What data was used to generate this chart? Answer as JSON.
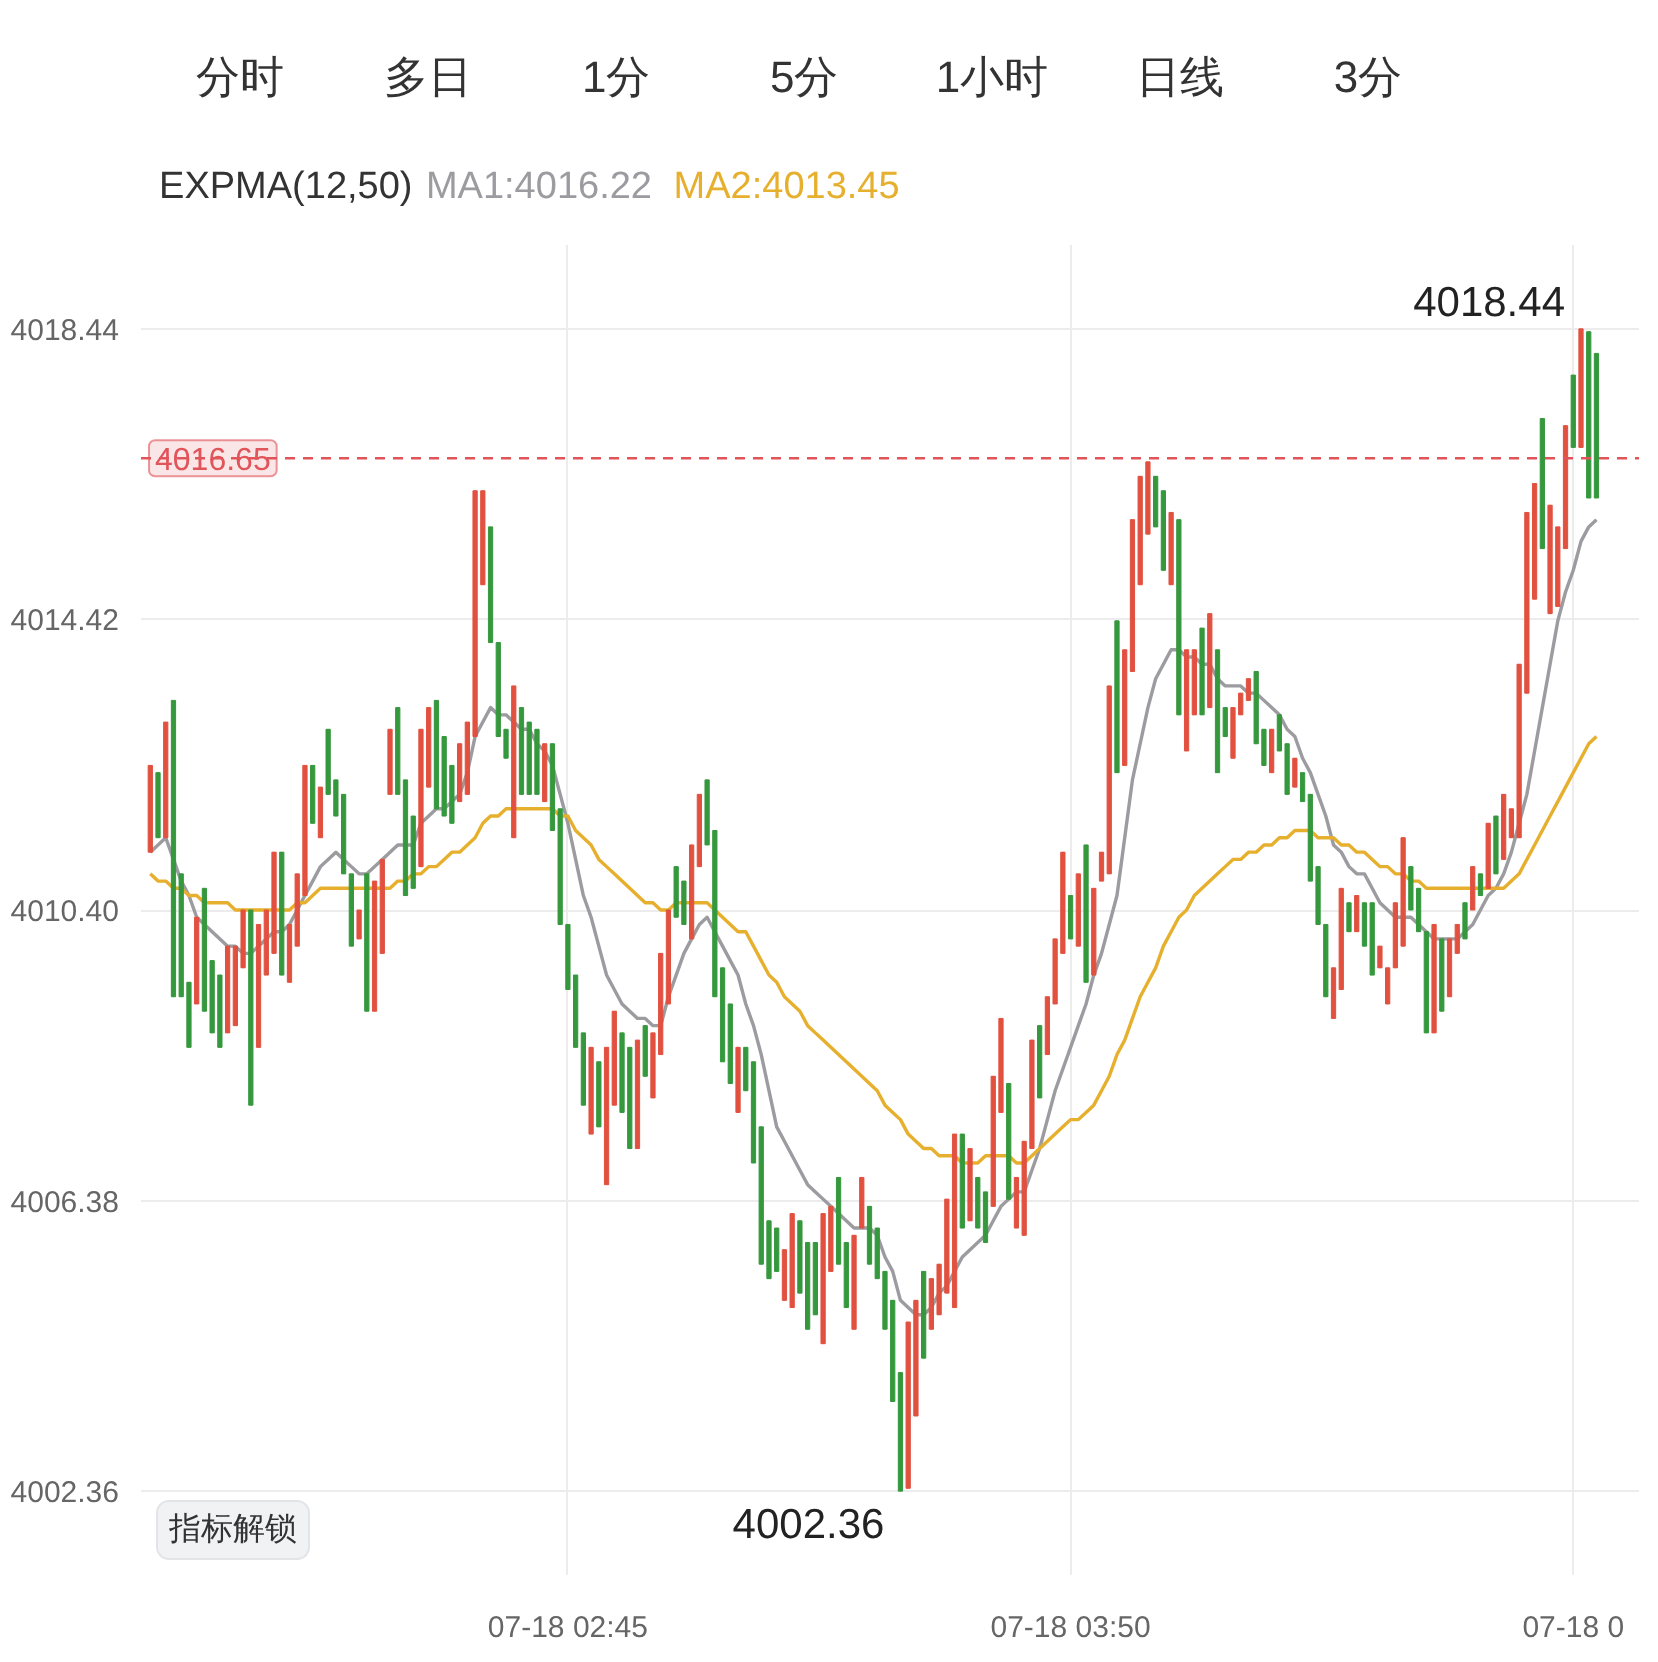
{
  "chart_data": {
    "type": "candlestick",
    "legend_title": "EXPMA(12,50)",
    "legend": "top left",
    "grid": true,
    "categories": [
      null,
      null,
      null,
      null,
      null,
      null,
      null,
      null,
      null,
      null,
      null,
      null,
      null,
      null,
      null,
      null,
      null,
      null,
      null,
      null,
      null,
      null,
      null,
      null,
      null,
      null,
      null,
      null,
      null,
      null,
      null,
      null,
      null,
      null,
      null,
      null,
      null,
      null,
      null,
      null,
      null,
      null,
      null,
      null,
      null,
      null,
      null,
      null,
      null,
      null,
      null,
      null,
      null,
      null,
      "07-18 02:45",
      null,
      null,
      null,
      null,
      null,
      null,
      null,
      null,
      null,
      null,
      null,
      null,
      null,
      null,
      null,
      null,
      null,
      null,
      null,
      null,
      null,
      null,
      null,
      null,
      null,
      null,
      null,
      null,
      null,
      null,
      null,
      null,
      null,
      null,
      null,
      null,
      null,
      null,
      null,
      null,
      null,
      null,
      null,
      null,
      null,
      null,
      null,
      null,
      null,
      null,
      null,
      null,
      null,
      null,
      null,
      null,
      null,
      null,
      null,
      null,
      null,
      null,
      null,
      null,
      "07-18 03:50",
      null,
      null,
      null,
      null,
      null,
      null,
      null,
      null,
      null,
      null,
      null,
      null,
      null,
      null,
      null,
      null,
      null,
      null,
      null,
      null,
      null,
      null,
      null,
      null,
      null,
      null,
      null,
      null,
      null,
      null,
      null,
      null,
      null,
      null,
      null,
      null,
      null,
      null,
      null,
      null,
      null,
      null,
      null,
      null,
      null,
      null,
      null,
      null,
      null,
      null,
      null,
      null,
      null,
      null,
      null,
      null,
      null,
      null,
      null,
      null,
      null,
      null,
      null,
      null,
      "07-18 0",
      null,
      null,
      null
    ],
    "ylim": [
      4001.2,
      4019.6
    ],
    "yticks": [
      4002.36,
      4006.38,
      {
        "value": 4010.4,
        "label": "4010.40"
      },
      4014.42,
      4018.44
    ],
    "ohlc": [
      [
        4011.2,
        4012.4,
        4011.2,
        4012.4
      ],
      [
        4012.3,
        4012.3,
        4011.4,
        4011.4
      ],
      [
        4011.4,
        4013.0,
        4011.4,
        4013.0
      ],
      [
        4013.3,
        4013.3,
        4009.2,
        4009.2
      ],
      [
        4010.9,
        4010.9,
        4009.2,
        4009.2
      ],
      [
        4009.4,
        4009.4,
        4008.5,
        4008.5
      ],
      [
        4009.1,
        4010.3,
        4009.1,
        4010.3
      ],
      [
        4010.7,
        4010.7,
        4009.0,
        4009.0
      ],
      [
        4009.7,
        4009.7,
        4008.7,
        4008.7
      ],
      [
        4009.5,
        4009.5,
        4008.5,
        4008.5
      ],
      [
        4008.7,
        4009.9,
        4008.7,
        4009.9
      ],
      [
        4008.8,
        4009.9,
        4008.8,
        4009.9
      ],
      [
        4009.6,
        4010.4,
        4009.6,
        4010.4
      ],
      [
        4010.4,
        4010.4,
        4007.7,
        4007.7
      ],
      [
        4008.5,
        4010.2,
        4008.5,
        4010.2
      ],
      [
        4009.5,
        4010.4,
        4009.5,
        4010.4
      ],
      [
        4009.8,
        4011.2,
        4009.8,
        4011.2
      ],
      [
        4011.2,
        4011.2,
        4009.5,
        4009.5
      ],
      [
        4009.4,
        4010.2,
        4009.4,
        4010.2
      ],
      [
        4009.9,
        4010.9,
        4009.9,
        4010.9
      ],
      [
        4010.6,
        4012.4,
        4010.6,
        4012.4
      ],
      [
        4012.4,
        4012.4,
        4011.6,
        4011.6
      ],
      [
        4011.4,
        4012.1,
        4011.4,
        4012.1
      ],
      [
        4012.9,
        4012.9,
        4012.0,
        4012.0
      ],
      [
        4012.2,
        4012.2,
        4011.7,
        4011.7
      ],
      [
        4012.0,
        4012.0,
        4010.9,
        4010.9
      ],
      [
        4010.9,
        4010.9,
        4009.9,
        4009.9
      ],
      [
        4010.0,
        4010.4,
        4010.0,
        4010.4
      ],
      [
        4010.9,
        4010.9,
        4009.0,
        4009.0
      ],
      [
        4009.0,
        4010.8,
        4009.0,
        4010.8
      ],
      [
        4009.8,
        4011.1,
        4009.8,
        4011.1
      ],
      [
        4012.0,
        4012.9,
        4012.0,
        4012.9
      ],
      [
        4013.2,
        4013.2,
        4012.0,
        4012.0
      ],
      [
        4012.2,
        4012.2,
        4010.6,
        4010.6
      ],
      [
        4011.7,
        4011.7,
        4010.7,
        4010.7
      ],
      [
        4011.0,
        4012.9,
        4011.0,
        4012.9
      ],
      [
        4012.1,
        4013.2,
        4012.1,
        4013.2
      ],
      [
        4013.3,
        4013.3,
        4011.8,
        4011.8
      ],
      [
        4012.8,
        4012.8,
        4011.7,
        4011.7
      ],
      [
        4012.4,
        4012.4,
        4011.6,
        4011.6
      ],
      [
        4011.9,
        4012.7,
        4011.9,
        4012.7
      ],
      [
        4012.0,
        4013.0,
        4012.0,
        4013.0
      ],
      [
        4012.8,
        4016.2,
        4012.8,
        4016.2
      ],
      [
        4014.9,
        4016.2,
        4014.9,
        4016.2
      ],
      [
        4015.7,
        4015.7,
        4014.1,
        4014.1
      ],
      [
        4014.1,
        4014.1,
        4012.8,
        4012.8
      ],
      [
        4012.9,
        4012.9,
        4012.5,
        4012.5
      ],
      [
        4011.4,
        4013.5,
        4011.4,
        4013.5
      ],
      [
        4013.2,
        4013.2,
        4012.0,
        4012.0
      ],
      [
        4013.0,
        4013.0,
        4012.0,
        4012.0
      ],
      [
        4012.9,
        4012.9,
        4012.0,
        4012.0
      ],
      [
        4011.9,
        4012.7,
        4011.9,
        4012.7
      ],
      [
        4012.7,
        4012.7,
        4011.5,
        4011.5
      ],
      [
        4011.8,
        4011.8,
        4010.2,
        4010.2
      ],
      [
        4010.2,
        4010.2,
        4009.3,
        4009.3
      ],
      [
        4009.5,
        4009.5,
        4008.5,
        4008.5
      ],
      [
        4008.7,
        4008.7,
        4007.7,
        4007.7
      ],
      [
        4007.3,
        4008.5,
        4007.3,
        4008.5
      ],
      [
        4008.3,
        4008.3,
        4007.4,
        4007.4
      ],
      [
        4006.6,
        4008.5,
        4006.6,
        4008.5
      ],
      [
        4007.7,
        4009.0,
        4007.7,
        4009.0
      ],
      [
        4008.7,
        4008.7,
        4007.6,
        4007.6
      ],
      [
        4008.5,
        4008.5,
        4007.1,
        4007.1
      ],
      [
        4007.1,
        4008.6,
        4007.1,
        4008.6
      ],
      [
        4008.8,
        4008.8,
        4008.1,
        4008.1
      ],
      [
        4007.8,
        4008.7,
        4007.8,
        4008.7
      ],
      [
        4008.4,
        4009.8,
        4008.4,
        4009.8
      ],
      [
        4009.1,
        4010.4,
        4009.1,
        4010.4
      ],
      [
        4011.0,
        4011.0,
        4010.3,
        4010.3
      ],
      [
        4010.8,
        4010.8,
        4010.2,
        4010.2
      ],
      [
        4010.0,
        4011.3,
        4010.0,
        4011.3
      ],
      [
        4011.0,
        4012.0,
        4011.0,
        4012.0
      ],
      [
        4012.2,
        4012.2,
        4011.3,
        4011.3
      ],
      [
        4011.5,
        4011.5,
        4009.2,
        4009.2
      ],
      [
        4009.6,
        4009.6,
        4008.3,
        4008.3
      ],
      [
        4009.1,
        4009.1,
        4008.0,
        4008.0
      ],
      [
        4007.6,
        4008.5,
        4007.6,
        4008.5
      ],
      [
        4008.5,
        4008.5,
        4007.9,
        4007.9
      ],
      [
        4008.3,
        4008.3,
        4006.9,
        4006.9
      ],
      [
        4007.4,
        4007.4,
        4005.5,
        4005.5
      ],
      [
        4006.1,
        4006.1,
        4005.3,
        4005.3
      ],
      [
        4006.0,
        4006.0,
        4005.4,
        4005.4
      ],
      [
        4005.0,
        4005.7,
        4005.0,
        4005.7
      ],
      [
        4004.9,
        4006.2,
        4004.9,
        4006.2
      ],
      [
        4006.1,
        4006.1,
        4005.1,
        4005.1
      ],
      [
        4005.8,
        4005.8,
        4004.6,
        4004.6
      ],
      [
        4005.8,
        4005.8,
        4004.8,
        4004.8
      ],
      [
        4004.4,
        4006.2,
        4004.4,
        4006.2
      ],
      [
        4005.4,
        4006.3,
        4005.4,
        4006.3
      ],
      [
        4006.7,
        4006.7,
        4005.5,
        4005.5
      ],
      [
        4005.8,
        4005.8,
        4004.9,
        4004.9
      ],
      [
        4004.6,
        4005.9,
        4004.6,
        4005.9
      ],
      [
        4006.0,
        4006.7,
        4006.0,
        4006.7
      ],
      [
        4006.3,
        4006.3,
        4005.5,
        4005.5
      ],
      [
        4006.0,
        4006.0,
        4005.3,
        4005.3
      ],
      [
        4005.4,
        4005.4,
        4004.6,
        4004.6
      ],
      [
        4005.0,
        4005.0,
        4003.6,
        4003.6
      ],
      [
        4004.0,
        4004.0,
        4002.36,
        4002.36
      ],
      [
        4002.4,
        4004.7,
        4002.4,
        4004.7
      ],
      [
        4003.4,
        4005.0,
        4003.4,
        4005.0
      ],
      [
        4005.4,
        4005.4,
        4004.2,
        4004.2
      ],
      [
        4004.6,
        4005.3,
        4004.6,
        4005.3
      ],
      [
        4004.8,
        4005.5,
        4004.8,
        4005.5
      ],
      [
        4005.1,
        4006.4,
        4005.1,
        4006.4
      ],
      [
        4004.9,
        4007.3,
        4004.9,
        4007.3
      ],
      [
        4007.3,
        4007.3,
        4006.0,
        4006.0
      ],
      [
        4006.1,
        4007.1,
        4006.1,
        4007.1
      ],
      [
        4006.7,
        4006.7,
        4006.0,
        4006.0
      ],
      [
        4006.5,
        4006.5,
        4005.8,
        4005.8
      ],
      [
        4006.3,
        4008.1,
        4006.3,
        4008.1
      ],
      [
        4007.6,
        4008.9,
        4007.6,
        4008.9
      ],
      [
        4008.0,
        4008.0,
        4006.4,
        4006.4
      ],
      [
        4006.0,
        4006.7,
        4006.0,
        4006.7
      ],
      [
        4005.9,
        4007.2,
        4005.9,
        4007.2
      ],
      [
        4007.1,
        4008.6,
        4007.1,
        4008.6
      ],
      [
        4008.8,
        4008.8,
        4007.8,
        4007.8
      ],
      [
        4008.4,
        4009.2,
        4008.4,
        4009.2
      ],
      [
        4009.1,
        4010.0,
        4009.1,
        4010.0
      ],
      [
        4009.8,
        4011.2,
        4009.8,
        4011.2
      ],
      [
        4010.6,
        4010.6,
        4010.0,
        4010.0
      ],
      [
        4009.9,
        4010.9,
        4009.9,
        4010.9
      ],
      [
        4011.3,
        4011.3,
        4009.4,
        4009.4
      ],
      [
        4009.5,
        4010.7,
        4009.5,
        4010.7
      ],
      [
        4010.8,
        4011.2,
        4010.8,
        4011.2
      ],
      [
        4010.9,
        4013.5,
        4010.9,
        4013.5
      ],
      [
        4014.4,
        4014.4,
        4012.3,
        4012.3
      ],
      [
        4012.4,
        4014.0,
        4012.4,
        4014.0
      ],
      [
        4013.7,
        4015.8,
        4013.7,
        4015.8
      ],
      [
        4014.9,
        4016.4,
        4014.9,
        4016.4
      ],
      [
        4015.6,
        4016.6,
        4015.6,
        4016.6
      ],
      [
        4016.4,
        4016.4,
        4015.7,
        4015.7
      ],
      [
        4016.2,
        4016.2,
        4015.1,
        4015.1
      ],
      [
        4014.9,
        4015.9,
        4014.9,
        4015.9
      ],
      [
        4015.8,
        4015.8,
        4013.1,
        4013.1
      ],
      [
        4012.6,
        4014.0,
        4012.6,
        4014.0
      ],
      [
        4013.1,
        4014.0,
        4013.1,
        4014.0
      ],
      [
        4014.3,
        4014.3,
        4013.1,
        4013.1
      ],
      [
        4013.2,
        4014.5,
        4013.2,
        4014.5
      ],
      [
        4014.0,
        4014.0,
        4012.3,
        4012.3
      ],
      [
        4013.2,
        4013.2,
        4012.8,
        4012.8
      ],
      [
        4012.5,
        4013.2,
        4012.5,
        4013.2
      ],
      [
        4013.1,
        4013.4,
        4013.1,
        4013.4
      ],
      [
        4013.3,
        4013.6,
        4013.3,
        4013.6
      ],
      [
        4013.7,
        4013.7,
        4012.7,
        4012.7
      ],
      [
        4012.9,
        4012.9,
        4012.4,
        4012.4
      ],
      [
        4012.3,
        4012.9,
        4012.3,
        4012.9
      ],
      [
        4013.1,
        4013.1,
        4012.6,
        4012.6
      ],
      [
        4012.7,
        4012.7,
        4012.0,
        4012.0
      ],
      [
        4012.1,
        4012.5,
        4012.1,
        4012.5
      ],
      [
        4012.3,
        4012.3,
        4011.9,
        4011.9
      ],
      [
        4012.0,
        4012.0,
        4010.8,
        4010.8
      ],
      [
        4011.0,
        4011.0,
        4010.2,
        4010.2
      ],
      [
        4010.2,
        4010.2,
        4009.2,
        4009.2
      ],
      [
        4008.9,
        4009.6,
        4008.9,
        4009.6
      ],
      [
        4009.3,
        4010.7,
        4009.3,
        4010.7
      ],
      [
        4010.5,
        4010.5,
        4010.1,
        4010.1
      ],
      [
        4010.1,
        4010.6,
        4010.1,
        4010.6
      ],
      [
        4010.5,
        4010.5,
        4009.9,
        4009.9
      ],
      [
        4010.5,
        4010.5,
        4009.5,
        4009.5
      ],
      [
        4009.6,
        4009.9,
        4009.6,
        4009.9
      ],
      [
        4009.1,
        4009.6,
        4009.1,
        4009.6
      ],
      [
        4009.6,
        4010.5,
        4009.6,
        4010.5
      ],
      [
        4009.9,
        4011.4,
        4009.9,
        4011.4
      ],
      [
        4011.0,
        4011.0,
        4010.4,
        4010.4
      ],
      [
        4010.7,
        4010.7,
        4010.1,
        4010.1
      ],
      [
        4010.1,
        4010.1,
        4008.7,
        4008.7
      ],
      [
        4008.7,
        4010.2,
        4008.7,
        4010.2
      ],
      [
        4010.0,
        4010.0,
        4009.0,
        4009.0
      ],
      [
        4009.2,
        4010.0,
        4009.2,
        4010.0
      ],
      [
        4009.8,
        4010.2,
        4009.8,
        4010.2
      ],
      [
        4010.5,
        4010.5,
        4010.0,
        4010.0
      ],
      [
        4010.4,
        4011.0,
        4010.4,
        4011.0
      ],
      [
        4010.9,
        4010.9,
        4010.6,
        4010.6
      ],
      [
        4010.7,
        4011.6,
        4010.7,
        4011.6
      ],
      [
        4011.7,
        4011.7,
        4010.9,
        4010.9
      ],
      [
        4011.1,
        4012.0,
        4011.1,
        4012.0
      ],
      [
        4011.4,
        4011.8,
        4011.4,
        4011.8
      ],
      [
        4011.4,
        4013.8,
        4011.4,
        4013.8
      ],
      [
        4013.4,
        4015.9,
        4013.4,
        4015.9
      ],
      [
        4014.7,
        4016.3,
        4014.7,
        4016.3
      ],
      [
        4017.2,
        4017.2,
        4015.4,
        4015.4
      ],
      [
        4014.5,
        4016.0,
        4014.5,
        4016.0
      ],
      [
        4014.6,
        4015.7,
        4014.6,
        4015.7
      ],
      [
        4015.4,
        4017.1,
        4015.4,
        4017.1
      ],
      [
        4017.8,
        4017.8,
        4016.8,
        4016.8
      ],
      [
        4016.8,
        4018.44,
        4016.8,
        4018.44
      ],
      [
        4018.4,
        4018.4,
        4016.1,
        4016.1
      ],
      [
        4018.1,
        4018.1,
        4016.1,
        4016.1
      ]
    ],
    "value_labels": [
      null,
      null,
      null,
      null,
      null,
      null,
      null,
      null,
      null,
      null,
      null,
      null,
      null,
      null,
      null,
      null,
      null,
      null,
      null,
      null,
      null,
      null,
      null,
      null,
      null,
      null,
      null,
      null,
      null,
      null,
      null,
      null,
      null,
      null,
      null,
      null,
      null,
      null,
      null,
      null,
      null,
      null,
      null,
      null,
      null,
      null,
      null,
      null,
      null,
      null,
      null,
      null,
      null,
      null,
      null,
      null,
      null,
      null,
      null,
      null,
      null,
      null,
      null,
      null,
      null,
      null,
      null,
      null,
      null,
      null,
      null,
      null,
      null,
      null,
      null,
      null,
      null,
      null,
      null,
      null,
      null,
      null,
      null,
      null,
      null,
      null,
      null,
      null,
      null,
      null,
      null,
      null,
      null,
      null,
      null,
      null,
      null,
      "4002.36",
      null,
      null,
      null,
      null,
      null,
      null,
      null,
      null,
      null,
      null,
      null,
      null,
      null,
      null,
      null,
      null,
      null,
      null,
      null,
      null,
      null,
      null,
      null,
      null,
      null,
      null,
      null,
      null,
      null,
      null,
      null,
      null,
      null,
      null,
      null,
      null,
      null,
      null,
      null,
      null,
      null,
      null,
      null,
      null,
      null,
      null,
      null,
      null,
      null,
      null,
      null,
      null,
      null,
      null,
      null,
      null,
      null,
      null,
      null,
      null,
      null,
      null,
      null,
      null,
      null,
      null,
      null,
      null,
      null,
      null,
      null,
      null,
      null,
      null,
      null,
      null,
      null,
      null,
      null,
      null,
      null,
      null,
      null,
      null,
      null,
      null,
      null,
      "4018.44",
      null,
      null
    ],
    "colors": [
      "#e2503f",
      "#35983d",
      "#e2503f",
      "#35983d",
      "#35983d",
      "#35983d",
      "#e2503f",
      "#35983d",
      "#35983d",
      "#35983d",
      "#e2503f",
      "#e2503f",
      "#e2503f",
      "#35983d",
      "#e2503f",
      "#e2503f",
      "#e2503f",
      "#35983d",
      "#e2503f",
      "#e2503f",
      "#e2503f",
      "#35983d",
      "#e2503f",
      "#35983d",
      "#35983d",
      "#35983d",
      "#35983d",
      "#e2503f",
      "#35983d",
      "#e2503f",
      "#e2503f",
      "#e2503f",
      "#35983d",
      "#35983d",
      "#35983d",
      "#e2503f",
      "#e2503f",
      "#35983d",
      "#35983d",
      "#35983d",
      "#e2503f",
      "#e2503f",
      "#e2503f",
      "#e2503f",
      "#35983d",
      "#35983d",
      "#35983d",
      "#e2503f",
      "#35983d",
      "#35983d",
      "#35983d",
      "#e2503f",
      "#35983d",
      "#35983d",
      "#35983d",
      "#35983d",
      "#35983d",
      "#e2503f",
      "#35983d",
      "#e2503f",
      "#e2503f",
      "#35983d",
      "#35983d",
      "#e2503f",
      "#35983d",
      "#e2503f",
      "#e2503f",
      "#e2503f",
      "#35983d",
      "#35983d",
      "#e2503f",
      "#e2503f",
      "#35983d",
      "#35983d",
      "#35983d",
      "#35983d",
      "#e2503f",
      "#35983d",
      "#35983d",
      "#35983d",
      "#35983d",
      "#35983d",
      "#e2503f",
      "#e2503f",
      "#35983d",
      "#35983d",
      "#35983d",
      "#e2503f",
      "#e2503f",
      "#35983d",
      "#35983d",
      "#e2503f",
      "#e2503f",
      "#35983d",
      "#35983d",
      "#35983d",
      "#35983d",
      "#35983d",
      "#e2503f",
      "#e2503f",
      "#35983d",
      "#e2503f",
      "#e2503f",
      "#e2503f",
      "#e2503f",
      "#35983d",
      "#e2503f",
      "#35983d",
      "#35983d",
      "#e2503f",
      "#e2503f",
      "#35983d",
      "#e2503f",
      "#e2503f",
      "#e2503f",
      "#35983d",
      "#e2503f",
      "#e2503f",
      "#e2503f",
      "#35983d",
      "#e2503f",
      "#35983d",
      "#e2503f",
      "#e2503f",
      "#e2503f",
      "#35983d",
      "#e2503f",
      "#e2503f",
      "#e2503f",
      "#e2503f",
      "#35983d",
      "#35983d",
      "#e2503f",
      "#35983d",
      "#e2503f",
      "#e2503f",
      "#35983d",
      "#e2503f",
      "#35983d",
      "#35983d",
      "#e2503f",
      "#e2503f",
      "#e2503f",
      "#35983d",
      "#35983d",
      "#e2503f",
      "#35983d",
      "#35983d",
      "#e2503f",
      "#35983d",
      "#35983d",
      "#35983d",
      "#35983d",
      "#e2503f",
      "#e2503f",
      "#35983d",
      "#e2503f",
      "#35983d",
      "#35983d",
      "#e2503f",
      "#e2503f",
      "#e2503f",
      "#e2503f",
      "#35983d",
      "#35983d",
      "#35983d",
      "#e2503f",
      "#35983d",
      "#e2503f",
      "#e2503f",
      "#35983d",
      "#e2503f",
      "#35983d",
      "#e2503f",
      "#35983d",
      "#e2503f",
      "#e2503f",
      "#e2503f",
      "#e2503f",
      "#e2503f",
      "#35983d",
      "#e2503f",
      "#e2503f",
      "#e2503f",
      "#35983d",
      "#e2503f",
      "#35983d",
      "#35983d"
    ],
    "series": [
      {
        "name": "MA1:4016.22",
        "type": "line",
        "color": "#9b9ba0",
        "values": [
          4011.2,
          4011.3,
          4011.4,
          4011.1,
          4010.8,
          4010.6,
          4010.3,
          4010.2,
          4010.1,
          4010.0,
          4009.9,
          4009.9,
          4009.8,
          4009.8,
          4009.9,
          4010.0,
          4010.1,
          4010.1,
          4010.2,
          4010.4,
          4010.6,
          4010.8,
          4011.0,
          4011.1,
          4011.2,
          4011.1,
          4011.0,
          4010.9,
          4010.9,
          4011.0,
          4011.1,
          4011.2,
          4011.3,
          4011.3,
          4011.3,
          4011.6,
          4011.7,
          4011.8,
          4011.8,
          4011.9,
          4012.0,
          4012.3,
          4012.8,
          4013.0,
          4013.2,
          4013.1,
          4013.1,
          4013.0,
          4012.9,
          4012.9,
          4012.7,
          4012.6,
          4012.4,
          4012.0,
          4011.6,
          4011.1,
          4010.6,
          4010.3,
          4009.9,
          4009.5,
          4009.3,
          4009.1,
          4009.0,
          4008.9,
          4008.9,
          4008.8,
          4008.8,
          4009.2,
          4009.5,
          4009.8,
          4010.0,
          4010.2,
          4010.3,
          4010.1,
          4009.9,
          4009.7,
          4009.5,
          4009.1,
          4008.8,
          4008.4,
          4007.9,
          4007.4,
          4007.2,
          4007.0,
          4006.8,
          4006.6,
          4006.5,
          4006.4,
          4006.3,
          4006.2,
          4006.1,
          4006.0,
          4006.0,
          4006.0,
          4005.9,
          4005.6,
          4005.4,
          4005.0,
          4004.9,
          4004.8,
          4004.8,
          4004.9,
          4005.1,
          4005.2,
          4005.4,
          4005.6,
          4005.7,
          4005.8,
          4005.9,
          4006.1,
          4006.3,
          4006.4,
          4006.5,
          4006.5,
          4006.8,
          4007.1,
          4007.5,
          4007.9,
          4008.2,
          4008.5,
          4008.8,
          4009.1,
          4009.5,
          4009.8,
          4010.2,
          4010.6,
          4011.4,
          4012.2,
          4012.7,
          4013.2,
          4013.6,
          4013.8,
          4014.0,
          4014.0,
          4013.9,
          4013.9,
          4013.8,
          4013.8,
          4013.6,
          4013.5,
          4013.5,
          4013.5,
          4013.4,
          4013.4,
          4013.3,
          4013.2,
          4013.1,
          4012.9,
          4012.8,
          4012.5,
          4012.3,
          4012.0,
          4011.7,
          4011.3,
          4011.2,
          4011.0,
          4010.9,
          4010.9,
          4010.7,
          4010.5,
          4010.4,
          4010.3,
          4010.3,
          4010.3,
          4010.2,
          4010.1,
          4010.0,
          4010.0,
          4010.0,
          4010.0,
          4010.1,
          4010.2,
          4010.4,
          4010.6,
          4010.7,
          4010.9,
          4011.2,
          4011.6,
          4012.0,
          4012.6,
          4013.2,
          4013.8,
          4014.4,
          4014.8,
          4015.1,
          4015.5,
          4015.7,
          4015.8
        ]
      },
      {
        "name": "MA2:4013.45",
        "type": "line",
        "color": "#e6b02e",
        "values": [
          4010.9,
          4010.8,
          4010.8,
          4010.7,
          4010.7,
          4010.6,
          4010.6,
          4010.5,
          4010.5,
          4010.5,
          4010.5,
          4010.4,
          4010.4,
          4010.4,
          4010.4,
          4010.4,
          4010.4,
          4010.4,
          4010.4,
          4010.5,
          4010.5,
          4010.6,
          4010.7,
          4010.7,
          4010.7,
          4010.7,
          4010.7,
          4010.7,
          4010.7,
          4010.7,
          4010.7,
          4010.7,
          4010.8,
          4010.8,
          4010.9,
          4010.9,
          4011.0,
          4011.0,
          4011.1,
          4011.2,
          4011.2,
          4011.3,
          4011.4,
          4011.6,
          4011.7,
          4011.7,
          4011.8,
          4011.8,
          4011.8,
          4011.8,
          4011.8,
          4011.8,
          4011.8,
          4011.7,
          4011.7,
          4011.5,
          4011.4,
          4011.3,
          4011.1,
          4011.0,
          4010.9,
          4010.8,
          4010.7,
          4010.6,
          4010.5,
          4010.5,
          4010.4,
          4010.4,
          4010.5,
          4010.5,
          4010.5,
          4010.5,
          4010.5,
          4010.4,
          4010.3,
          4010.2,
          4010.1,
          4010.1,
          4009.9,
          4009.7,
          4009.5,
          4009.4,
          4009.2,
          4009.1,
          4009.0,
          4008.8,
          4008.7,
          4008.6,
          4008.5,
          4008.4,
          4008.3,
          4008.2,
          4008.1,
          4008.0,
          4007.9,
          4007.7,
          4007.6,
          4007.5,
          4007.3,
          4007.2,
          4007.1,
          4007.1,
          4007.0,
          4007.0,
          4007.0,
          4006.9,
          4006.9,
          4006.9,
          4007.0,
          4007.0,
          4007.0,
          4007.0,
          4006.9,
          4006.9,
          4007.0,
          4007.1,
          4007.2,
          4007.3,
          4007.4,
          4007.5,
          4007.5,
          4007.6,
          4007.7,
          4007.9,
          4008.1,
          4008.4,
          4008.6,
          4008.9,
          4009.2,
          4009.4,
          4009.6,
          4009.9,
          4010.1,
          4010.3,
          4010.4,
          4010.6,
          4010.7,
          4010.8,
          4010.9,
          4011.0,
          4011.1,
          4011.1,
          4011.2,
          4011.2,
          4011.3,
          4011.3,
          4011.4,
          4011.4,
          4011.5,
          4011.5,
          4011.5,
          4011.4,
          4011.4,
          4011.4,
          4011.3,
          4011.3,
          4011.2,
          4011.2,
          4011.1,
          4011.0,
          4011.0,
          4010.9,
          4010.9,
          4010.8,
          4010.8,
          4010.7,
          4010.7,
          4010.7,
          4010.7,
          4010.7,
          4010.7,
          4010.7,
          4010.7,
          4010.7,
          4010.7,
          4010.7,
          4010.8,
          4010.9,
          4011.1,
          4011.3,
          4011.5,
          4011.7,
          4011.9,
          4012.1,
          4012.3,
          4012.5,
          4012.7,
          4012.8
        ]
      }
    ],
    "ref_lines": [
      {
        "axis": "y",
        "value": 4016.65,
        "label": "4016.65",
        "color": "#e0545a",
        "line_style": "dashed"
      }
    ],
    "annotations": [
      "分时",
      "多日",
      "1分",
      "5分",
      "1小时",
      "日线",
      "3分",
      "指标解锁"
    ]
  }
}
